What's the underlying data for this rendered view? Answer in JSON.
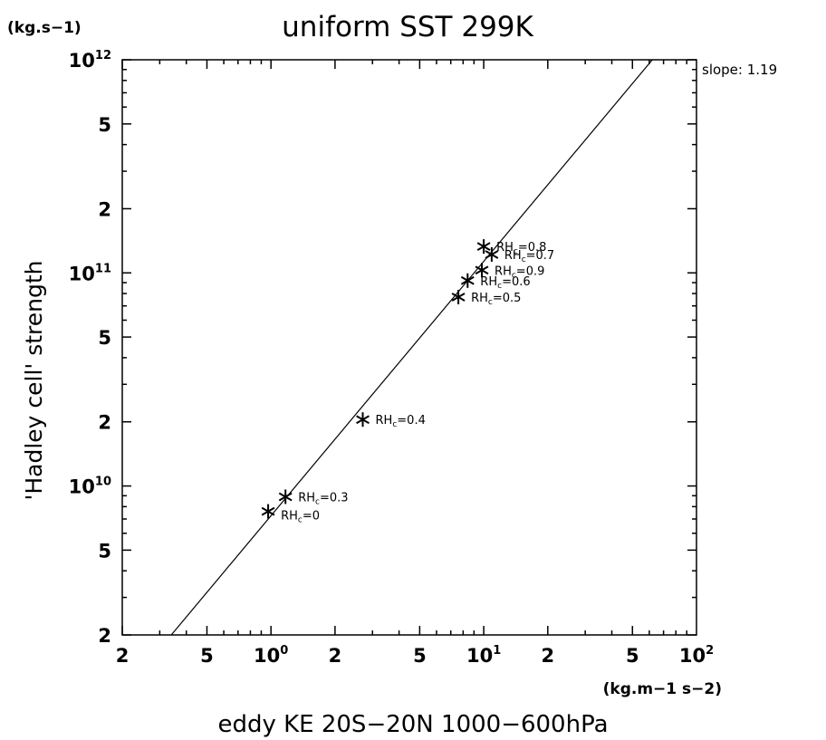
{
  "chart_data": {
    "type": "scatter",
    "title": "uniform SST 299K",
    "xlabel": "eddy KE 20S−20N 1000−600hPa",
    "ylabel": "'Hadley cell' strength",
    "x_unit": "(kg.m−1 s−2)",
    "y_unit": "(kg.s−1)",
    "x_scale": "log",
    "y_scale": "log",
    "xlim": [
      0.2,
      100
    ],
    "ylim": [
      2000000000.0,
      1000000000000.0
    ],
    "x_ticks": [
      {
        "value": 0.2,
        "base": "2",
        "exp": ""
      },
      {
        "value": 0.5,
        "base": "5",
        "exp": ""
      },
      {
        "value": 1,
        "base": "10",
        "exp": "0"
      },
      {
        "value": 2,
        "base": "2",
        "exp": ""
      },
      {
        "value": 5,
        "base": "5",
        "exp": ""
      },
      {
        "value": 10,
        "base": "10",
        "exp": "1"
      },
      {
        "value": 20,
        "base": "2",
        "exp": ""
      },
      {
        "value": 50,
        "base": "5",
        "exp": ""
      },
      {
        "value": 100,
        "base": "10",
        "exp": "2"
      }
    ],
    "y_ticks": [
      {
        "value": 2000000000.0,
        "base": "2",
        "exp": ""
      },
      {
        "value": 5000000000.0,
        "base": "5",
        "exp": ""
      },
      {
        "value": 10000000000.0,
        "base": "10",
        "exp": "10"
      },
      {
        "value": 20000000000.0,
        "base": "2",
        "exp": ""
      },
      {
        "value": 50000000000.0,
        "base": "5",
        "exp": ""
      },
      {
        "value": 100000000000.0,
        "base": "10",
        "exp": "11"
      },
      {
        "value": 200000000000.0,
        "base": "2",
        "exp": ""
      },
      {
        "value": 500000000000.0,
        "base": "5",
        "exp": ""
      },
      {
        "value": 1000000000000.0,
        "base": "10",
        "exp": "12"
      }
    ],
    "marker": "*",
    "points": [
      {
        "label": "RHc=0",
        "base": "RH",
        "subscript": "c",
        "suffix": "=0",
        "x": 0.97,
        "y": 7600000000.0,
        "label_pos": "below-right"
      },
      {
        "label": "RHc=0.3",
        "base": "RH",
        "subscript": "c",
        "suffix": "=0.3",
        "x": 1.17,
        "y": 8900000000.0,
        "label_pos": "right"
      },
      {
        "label": "RHc=0.4",
        "base": "RH",
        "subscript": "c",
        "suffix": "=0.4",
        "x": 2.7,
        "y": 20500000000.0,
        "label_pos": "right"
      },
      {
        "label": "RHc=0.5",
        "base": "RH",
        "subscript": "c",
        "suffix": "=0.5",
        "x": 7.6,
        "y": 77000000000.0,
        "label_pos": "right"
      },
      {
        "label": "RHc=0.6",
        "base": "RH",
        "subscript": "c",
        "suffix": "=0.6",
        "x": 8.4,
        "y": 92000000000.0,
        "label_pos": "right"
      },
      {
        "label": "RHc=0.9",
        "base": "RH",
        "subscript": "c",
        "suffix": "=0.9",
        "x": 9.8,
        "y": 103000000000.0,
        "label_pos": "right"
      },
      {
        "label": "RHc=0.7",
        "base": "RH",
        "subscript": "c",
        "suffix": "=0.7",
        "x": 10.9,
        "y": 122000000000.0,
        "label_pos": "right"
      },
      {
        "label": "RHc=0.8",
        "base": "RH",
        "subscript": "c",
        "suffix": "=0.8",
        "x": 10.0,
        "y": 133000000000.0,
        "label_pos": "right"
      }
    ],
    "fit_line": {
      "x": [
        0.34,
        62
      ],
      "y": [
        2000000000.0,
        1000000000000.0
      ]
    },
    "annotation": "slope: 1.19",
    "grid": false,
    "legend": "none"
  }
}
